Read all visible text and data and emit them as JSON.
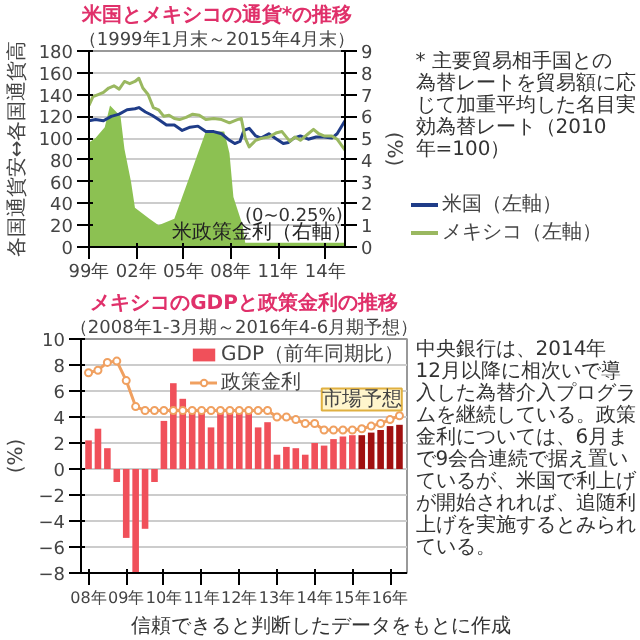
{
  "chart_data": [
    {
      "type": "line",
      "title": "米国とメキシコの通貨*の推移",
      "subtitle": "（1999年1月末～2015年4月末）",
      "ylabel": "各国通貨安↔各国通貨高",
      "y2label": "(%)",
      "xlim": [
        "1999-01",
        "2015-04"
      ],
      "xticks": [
        {
          "value": "1999-01",
          "label": "99年"
        },
        {
          "value": "2002-01",
          "label": "02年"
        },
        {
          "value": "2005-01",
          "label": "05年"
        },
        {
          "value": "2008-01",
          "label": "08年"
        },
        {
          "value": "2011-01",
          "label": "11年"
        },
        {
          "value": "2014-01",
          "label": "14年"
        }
      ],
      "ylim": [
        0,
        180
      ],
      "yticks": [
        0,
        20,
        40,
        60,
        80,
        100,
        120,
        140,
        160,
        180
      ],
      "y2lim": [
        0,
        9
      ],
      "y2ticks": [
        0,
        1,
        2,
        3,
        4,
        5,
        6,
        7,
        8,
        9
      ],
      "grid": "y",
      "legend": "right",
      "series": [
        {
          "name": "米政策金利（右軸）",
          "type": "area",
          "axis": "y2",
          "color": "#8cc152",
          "x": [
            "1999-01",
            "1999-06",
            "2000-01",
            "2000-05",
            "2001-01",
            "2001-04",
            "2001-09",
            "2001-12",
            "2002-11",
            "2003-06",
            "2004-06",
            "2004-12",
            "2005-06",
            "2005-12",
            "2006-06",
            "2007-08",
            "2007-12",
            "2008-03",
            "2008-10",
            "2008-12",
            "2015-04"
          ],
          "values": [
            4.8,
            5.0,
            5.5,
            6.5,
            6.0,
            4.5,
            3.0,
            1.8,
            1.3,
            1.0,
            1.3,
            2.3,
            3.3,
            4.3,
            5.3,
            5.3,
            4.3,
            2.3,
            1.0,
            0.2,
            0.2
          ]
        },
        {
          "name": "米国（左軸）",
          "color": "#1f3c88",
          "x": [
            "1999-01",
            "1999-06",
            "1999-12",
            "2000-06",
            "2000-12",
            "2001-06",
            "2001-12",
            "2002-03",
            "2002-08",
            "2003-01",
            "2003-06",
            "2003-12",
            "2004-06",
            "2004-12",
            "2005-06",
            "2005-12",
            "2006-06",
            "2006-12",
            "2007-06",
            "2007-12",
            "2008-04",
            "2008-08",
            "2008-11",
            "2009-03",
            "2009-08",
            "2009-12",
            "2010-06",
            "2010-12",
            "2011-05",
            "2011-09",
            "2012-01",
            "2012-06",
            "2012-12",
            "2013-06",
            "2013-12",
            "2014-06",
            "2014-10",
            "2015-01",
            "2015-04"
          ],
          "values": [
            116,
            117,
            116,
            120,
            122,
            126,
            127,
            128,
            124,
            121,
            117,
            112,
            112,
            107,
            110,
            111,
            106,
            106,
            104,
            98,
            95,
            97,
            107,
            109,
            102,
            100,
            104,
            99,
            95,
            96,
            100,
            102,
            99,
            101,
            101,
            100,
            104,
            110,
            116
          ]
        },
        {
          "name": "メキシコ（左軸）",
          "color": "#9ab860",
          "x": [
            "1999-01",
            "1999-04",
            "1999-08",
            "1999-12",
            "2000-04",
            "2000-08",
            "2000-12",
            "2001-04",
            "2001-08",
            "2001-12",
            "2002-03",
            "2002-06",
            "2002-10",
            "2003-02",
            "2003-06",
            "2003-10",
            "2004-02",
            "2004-06",
            "2004-10",
            "2005-03",
            "2005-08",
            "2006-01",
            "2006-06",
            "2006-12",
            "2007-06",
            "2007-12",
            "2008-06",
            "2008-09",
            "2008-12",
            "2009-03",
            "2009-08",
            "2010-01",
            "2010-06",
            "2010-12",
            "2011-04",
            "2011-10",
            "2012-02",
            "2012-06",
            "2012-12",
            "2013-04",
            "2013-08",
            "2013-12",
            "2014-06",
            "2014-10",
            "2015-01",
            "2015-04"
          ],
          "values": [
            130,
            138,
            140,
            142,
            146,
            148,
            145,
            152,
            150,
            152,
            155,
            146,
            140,
            128,
            126,
            120,
            121,
            118,
            117,
            119,
            122,
            121,
            117,
            118,
            117,
            114,
            117,
            118,
            100,
            92,
            98,
            100,
            101,
            105,
            106,
            97,
            101,
            98,
            104,
            108,
            104,
            102,
            102,
            99,
            94,
            89
          ]
        }
      ],
      "annotations": [
        "* 主要貿易相手国との為替レートを貿易額に応じて加重平均した名目実効為替レート（2010年=100）",
        "(0~0.25%)",
        "信頼できると判断したデータをもとに作成"
      ]
    },
    {
      "type": "bar",
      "title": "メキシコのGDPと政策金利の推移",
      "subtitle": "（2008年1-3月期～2016年4-6月期予想）",
      "ylabel": "(%)",
      "categories": [
        "08年",
        null,
        null,
        null,
        "09年",
        null,
        null,
        null,
        "10年",
        null,
        null,
        null,
        "11年",
        null,
        null,
        null,
        "12年",
        null,
        null,
        null,
        "13年",
        null,
        null,
        null,
        "14年",
        null,
        null,
        null,
        "15年",
        null,
        null,
        null,
        "16年",
        null
      ],
      "ylim": [
        -8,
        10
      ],
      "yticks": [
        -8,
        -6,
        -4,
        -2,
        0,
        2,
        4,
        6,
        8,
        10
      ],
      "grid": "y",
      "legend": "top right",
      "series": [
        {
          "name": "GDP（前年同期比）",
          "type": "bar",
          "color": "#f0505a",
          "colors": [
            "#f0505a",
            "#f0505a",
            "#f0505a",
            "#f0505a",
            "#f0505a",
            "#f0505a",
            "#f0505a",
            "#f0505a",
            "#f0505a",
            "#f0505a",
            "#f0505a",
            "#f0505a",
            "#f0505a",
            "#f0505a",
            "#f0505a",
            "#f0505a",
            "#f0505a",
            "#f0505a",
            "#f0505a",
            "#f0505a",
            "#f0505a",
            "#f0505a",
            "#f0505a",
            "#f0505a",
            "#f0505a",
            "#f0505a",
            "#f0505a",
            "#f0505a",
            "#f0505a",
            "#a01010",
            "#a01010",
            "#a01010",
            "#a01010",
            "#a01010"
          ],
          "values": [
            2.2,
            3.1,
            1.6,
            -1.0,
            -5.3,
            -8.0,
            -4.6,
            -1.0,
            3.7,
            6.6,
            5.4,
            4.5,
            4.5,
            3.2,
            4.3,
            4.4,
            4.5,
            4.5,
            3.2,
            3.6,
            1.1,
            1.7,
            1.6,
            1.1,
            2.0,
            1.8,
            2.3,
            2.5,
            2.6,
            2.6,
            2.8,
            3.0,
            3.3,
            3.4
          ]
        },
        {
          "name": "政策金利",
          "type": "line",
          "color": "#f0a060",
          "marker": "circle",
          "values": [
            7.4,
            7.6,
            8.2,
            8.3,
            6.8,
            4.8,
            4.5,
            4.5,
            4.5,
            4.5,
            4.5,
            4.5,
            4.5,
            4.5,
            4.5,
            4.5,
            4.5,
            4.5,
            4.5,
            4.5,
            4.0,
            4.0,
            3.8,
            3.5,
            3.5,
            3.0,
            3.0,
            3.0,
            3.0,
            3.1,
            3.3,
            3.5,
            3.8,
            4.1
          ]
        }
      ],
      "annotations": [
        "市場予想",
        "中央銀行は、2014年12月以降に相次いで導入した為替介入プログラムを継続している。政策金利については、6月まで9会合連続で据え置いているが、米国で利上げが開始されれば、追随利上げを実施するとみられている。"
      ]
    }
  ]
}
